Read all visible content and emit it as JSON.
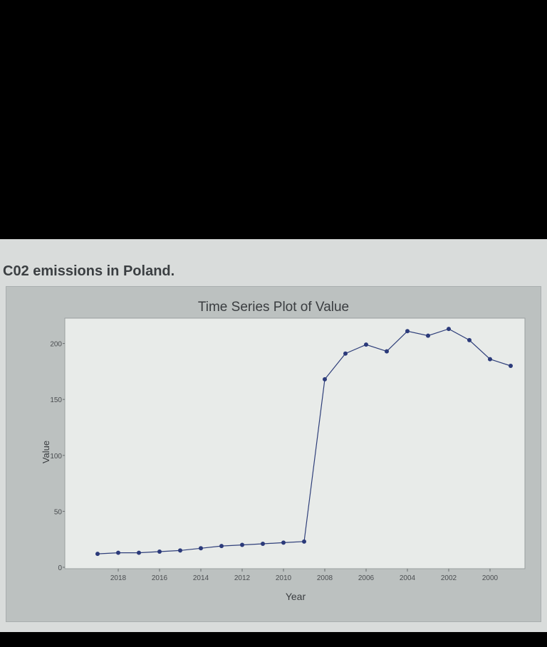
{
  "page": {
    "heading": "C02 emissions in Poland."
  },
  "chart_data": {
    "type": "line",
    "title": "Time Series Plot of Value",
    "xlabel": "Year",
    "ylabel": "Value",
    "x": [
      2019,
      2018,
      2017,
      2016,
      2015,
      2014,
      2013,
      2012,
      2011,
      2010,
      2009,
      2008,
      2007,
      2006,
      2005,
      2004,
      2003,
      2002,
      2001,
      2000,
      1999
    ],
    "values": [
      12,
      13,
      13,
      14,
      15,
      17,
      19,
      20,
      21,
      22,
      23,
      168,
      191,
      199,
      193,
      211,
      207,
      213,
      203,
      186,
      180
    ],
    "x_ticks": [
      "2018",
      "2016",
      "2014",
      "2012",
      "2010",
      "2008",
      "2006",
      "2004",
      "2002",
      "2000"
    ],
    "y_ticks": [
      "0",
      "50",
      "100",
      "150",
      "200"
    ],
    "ylim": [
      0,
      215
    ],
    "colors": {
      "line": "#2f3f7a",
      "marker": "#2b3a7a",
      "plot_bg": "#e8ebe9"
    }
  }
}
